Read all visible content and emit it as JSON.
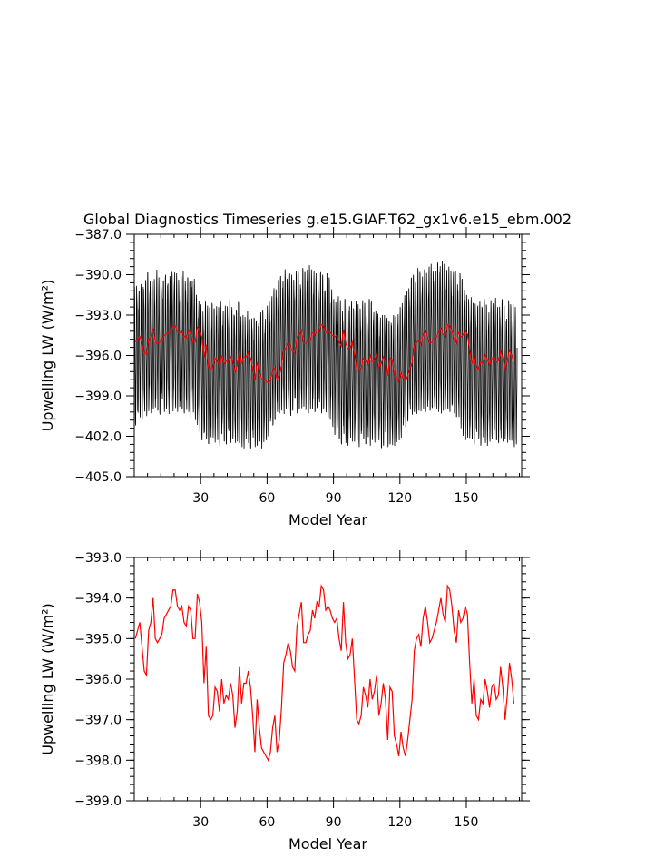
{
  "title": "Global Diagnostics Timeseries g.e15.GIAF.T62_gx1v6.e15_ebm.002",
  "chart_data": [
    {
      "type": "line",
      "xlabel": "Model Year",
      "ylabel": "Upwelling LW (W/m²)",
      "xlim": [
        0,
        175
      ],
      "ylim": [
        -405.0,
        -387.0
      ],
      "xticks": [
        30,
        60,
        90,
        120,
        150
      ],
      "yticks": [
        -405.0,
        -402.0,
        -399.0,
        -396.0,
        -393.0,
        -390.0,
        -387.0
      ],
      "grid": false,
      "series": [
        {
          "kind": "monthly",
          "color": "#000000",
          "annual_max": [
            -390.9,
            -390.6,
            -391.2,
            -390.7,
            -390.2,
            -390.4,
            -389.8,
            -390.1,
            -390.5,
            -390.3,
            -389.6,
            -390.2,
            -389.8,
            -390.4,
            -390.0,
            -389.9,
            -390.1,
            -389.8,
            -389.6,
            -389.9,
            -390.3,
            -390.1,
            -389.7,
            -390.0,
            -390.2,
            -390.5,
            -389.9,
            -390.3,
            -391.5,
            -391.8,
            -392.2,
            -392.6,
            -392.0,
            -392.3,
            -391.8,
            -392.1,
            -392.5,
            -391.9,
            -392.4,
            -392.0,
            -392.6,
            -392.3,
            -392.1,
            -391.7,
            -392.4,
            -392.2,
            -392.6,
            -392.0,
            -392.8,
            -393.0,
            -393.1,
            -392.7,
            -393.3,
            -392.9,
            -393.2,
            -393.4,
            -393.0,
            -392.8,
            -392.6,
            -393.1,
            -392.3,
            -391.9,
            -391.6,
            -391.0,
            -390.6,
            -390.4,
            -390.1,
            -389.9,
            -389.6,
            -390.3,
            -389.8,
            -390.0,
            -390.2,
            -389.7,
            -389.8,
            -390.1,
            -389.5,
            -389.8,
            -389.2,
            -389.3,
            -389.6,
            -389.7,
            -389.9,
            -390.1,
            -389.8,
            -390.0,
            -390.4,
            -389.9,
            -390.2,
            -390.8,
            -391.8,
            -392.0,
            -391.6,
            -391.9,
            -392.3,
            -391.8,
            -392.2,
            -391.7,
            -392.0,
            -392.5,
            -391.8,
            -392.2,
            -392.4,
            -391.9,
            -392.1,
            -392.6,
            -391.8,
            -392.0,
            -392.3,
            -392.7,
            -392.9,
            -393.1,
            -393.0,
            -392.8,
            -393.2,
            -393.4,
            -392.9,
            -393.0,
            -393.1,
            -392.6,
            -392.4,
            -392.1,
            -391.5,
            -391.2,
            -390.7,
            -390.2,
            -390.0,
            -389.7,
            -389.5,
            -389.8,
            -389.9,
            -389.6,
            -389.8,
            -389.4,
            -389.2,
            -389.3,
            -389.7,
            -389.1,
            -388.7,
            -389.0,
            -389.2,
            -389.5,
            -389.4,
            -389.6,
            -389.8,
            -389.7,
            -390.1,
            -389.9,
            -390.3,
            -390.6,
            -391.5,
            -391.8,
            -391.6,
            -392.1,
            -391.9,
            -392.3,
            -392.0,
            -391.6,
            -391.8,
            -392.2,
            -392.5,
            -391.9,
            -392.1,
            -391.7,
            -392.4,
            -392.0,
            -391.8,
            -392.3,
            -392.6,
            -391.9,
            -392.2,
            -392.0,
            -392.4,
            -392.1,
            -391.8
          ],
          "annual_min": [
            -401.2,
            -401.0,
            -400.6,
            -400.8,
            -400.4,
            -400.5,
            -400.2,
            -400.3,
            -400.0,
            -400.3,
            -400.1,
            -400.4,
            -399.8,
            -400.2,
            -400.0,
            -400.5,
            -400.1,
            -400.3,
            -399.9,
            -400.2,
            -400.4,
            -400.0,
            -400.3,
            -400.5,
            -400.2,
            -400.6,
            -400.3,
            -400.8,
            -401.4,
            -401.8,
            -402.3,
            -402.5,
            -402.2,
            -402.6,
            -402.4,
            -402.1,
            -402.5,
            -402.3,
            -402.7,
            -402.2,
            -402.4,
            -402.6,
            -402.3,
            -402.5,
            -402.2,
            -402.7,
            -402.4,
            -402.6,
            -402.8,
            -402.9,
            -402.7,
            -402.5,
            -402.9,
            -402.6,
            -402.8,
            -402.7,
            -402.5,
            -402.9,
            -402.6,
            -402.3,
            -402.0,
            -401.5,
            -401.2,
            -400.8,
            -400.6,
            -400.3,
            -400.1,
            -400.4,
            -400.0,
            -400.2,
            -400.5,
            -400.1,
            -399.9,
            -400.3,
            -400.0,
            -400.2,
            -399.8,
            -400.1,
            -400.3,
            -400.0,
            -400.4,
            -400.2,
            -399.9,
            -400.1,
            -400.3,
            -400.0,
            -400.4,
            -400.6,
            -400.9,
            -401.3,
            -401.9,
            -402.4,
            -402.2,
            -402.6,
            -402.3,
            -402.5,
            -402.7,
            -402.2,
            -402.4,
            -402.6,
            -402.3,
            -402.8,
            -402.5,
            -402.2,
            -402.6,
            -402.4,
            -402.7,
            -402.3,
            -402.5,
            -402.8,
            -402.6,
            -402.9,
            -402.7,
            -402.5,
            -402.8,
            -402.6,
            -402.9,
            -402.7,
            -402.5,
            -402.3,
            -402.1,
            -401.6,
            -401.3,
            -400.9,
            -400.6,
            -400.4,
            -400.2,
            -400.5,
            -400.1,
            -400.3,
            -400.0,
            -400.2,
            -400.4,
            -400.1,
            -399.9,
            -400.3,
            -400.0,
            -400.2,
            -400.4,
            -400.1,
            -400.3,
            -400.0,
            -400.2,
            -400.5,
            -400.3,
            -400.6,
            -400.9,
            -401.4,
            -402.0,
            -402.3,
            -402.1,
            -402.5,
            -402.2,
            -402.6,
            -402.4,
            -402.2,
            -402.7,
            -402.3,
            -402.5,
            -402.8,
            -402.4,
            -402.2,
            -402.6,
            -402.3,
            -402.5,
            -402.7,
            -402.4,
            -402.2,
            -402.6,
            -402.3,
            -402.5,
            -402.8,
            -402.6
          ]
        },
        {
          "kind": "annual",
          "color": "#ff0000",
          "values": [
            -395.0,
            -394.8,
            -394.6,
            -395.2,
            -395.8,
            -395.9,
            -394.8,
            -394.6,
            -394.0,
            -395.0,
            -395.1,
            -395.0,
            -394.9,
            -394.5,
            -394.4,
            -394.3,
            -394.2,
            -393.8,
            -393.8,
            -394.2,
            -394.3,
            -394.2,
            -394.6,
            -394.7,
            -394.2,
            -394.3,
            -395.0,
            -395.0,
            -393.9,
            -394.1,
            -394.6,
            -396.1,
            -395.2,
            -396.9,
            -397.0,
            -396.9,
            -396.2,
            -396.3,
            -396.8,
            -396.0,
            -396.6,
            -396.4,
            -396.5,
            -396.1,
            -396.4,
            -397.2,
            -396.8,
            -395.7,
            -396.6,
            -396.1,
            -396.1,
            -395.8,
            -396.2,
            -396.9,
            -397.8,
            -396.5,
            -397.2,
            -397.7,
            -397.8,
            -397.9,
            -398.0,
            -397.8,
            -397.2,
            -396.9,
            -397.8,
            -397.5,
            -396.7,
            -395.6,
            -395.4,
            -395.1,
            -395.3,
            -395.7,
            -395.8,
            -394.7,
            -394.4,
            -394.1,
            -395.1,
            -395.1,
            -394.9,
            -394.8,
            -394.3,
            -394.5,
            -394.1,
            -394.2,
            -393.7,
            -393.8,
            -394.3,
            -394.2,
            -394.3,
            -394.5,
            -394.6,
            -394.5,
            -395.0,
            -395.3,
            -394.1,
            -395.1,
            -395.5,
            -395.4,
            -395.0,
            -396.0,
            -397.0,
            -397.1,
            -396.9,
            -396.2,
            -396.4,
            -396.7,
            -396.0,
            -396.5,
            -396.3,
            -395.9,
            -396.9,
            -396.6,
            -396.1,
            -396.5,
            -397.5,
            -396.2,
            -396.3,
            -397.4,
            -397.6,
            -397.9,
            -397.3,
            -397.7,
            -397.9,
            -397.5,
            -397.0,
            -396.5,
            -395.3,
            -395.0,
            -394.9,
            -395.2,
            -394.5,
            -394.2,
            -394.6,
            -395.1,
            -395.0,
            -394.8,
            -394.6,
            -394.3,
            -394.0,
            -394.4,
            -394.6,
            -393.7,
            -393.8,
            -394.2,
            -394.8,
            -395.1,
            -394.3,
            -394.6,
            -394.5,
            -394.2,
            -394.4,
            -395.6,
            -396.6,
            -396.0,
            -396.9,
            -397.0,
            -396.5,
            -396.6,
            -396.0,
            -396.3,
            -396.7,
            -396.2,
            -396.1,
            -396.5,
            -396.4,
            -395.7,
            -396.2,
            -397.0,
            -396.4,
            -395.6,
            -396.0,
            -396.6
          ]
        }
      ]
    },
    {
      "type": "line",
      "xlabel": "Model Year",
      "ylabel": "Upwelling LW (W/m²)",
      "xlim": [
        0,
        175
      ],
      "ylim": [
        -399.0,
        -393.0
      ],
      "xticks": [
        30,
        60,
        90,
        120,
        150
      ],
      "yticks": [
        -399.0,
        -398.0,
        -397.0,
        -396.0,
        -395.0,
        -394.0,
        -393.0
      ],
      "grid": false,
      "series": [
        {
          "kind": "annual",
          "color": "#ff0000",
          "values": [
            -395.0,
            -394.8,
            -394.6,
            -395.2,
            -395.8,
            -395.9,
            -394.8,
            -394.6,
            -394.0,
            -395.0,
            -395.1,
            -395.0,
            -394.9,
            -394.5,
            -394.4,
            -394.3,
            -394.2,
            -393.8,
            -393.8,
            -394.2,
            -394.3,
            -394.2,
            -394.6,
            -394.7,
            -394.2,
            -394.3,
            -395.0,
            -395.0,
            -393.9,
            -394.1,
            -394.6,
            -396.1,
            -395.2,
            -396.9,
            -397.0,
            -396.9,
            -396.2,
            -396.3,
            -396.8,
            -396.0,
            -396.6,
            -396.4,
            -396.5,
            -396.1,
            -396.4,
            -397.2,
            -396.8,
            -395.7,
            -396.6,
            -396.1,
            -396.1,
            -395.8,
            -396.2,
            -396.9,
            -397.8,
            -396.5,
            -397.2,
            -397.7,
            -397.8,
            -397.9,
            -398.0,
            -397.8,
            -397.2,
            -396.9,
            -397.8,
            -397.5,
            -396.7,
            -395.6,
            -395.4,
            -395.1,
            -395.3,
            -395.7,
            -395.8,
            -394.7,
            -394.4,
            -394.1,
            -395.1,
            -395.1,
            -394.9,
            -394.8,
            -394.3,
            -394.5,
            -394.1,
            -394.2,
            -393.7,
            -393.8,
            -394.3,
            -394.2,
            -394.3,
            -394.5,
            -394.6,
            -394.5,
            -395.0,
            -395.3,
            -394.1,
            -395.1,
            -395.5,
            -395.4,
            -395.0,
            -396.0,
            -397.0,
            -397.1,
            -396.9,
            -396.2,
            -396.4,
            -396.7,
            -396.0,
            -396.5,
            -396.3,
            -395.9,
            -396.9,
            -396.6,
            -396.1,
            -396.5,
            -397.5,
            -396.2,
            -396.3,
            -397.4,
            -397.6,
            -397.9,
            -397.3,
            -397.7,
            -397.9,
            -397.5,
            -397.0,
            -396.5,
            -395.3,
            -395.0,
            -394.9,
            -395.2,
            -394.5,
            -394.2,
            -394.6,
            -395.1,
            -395.0,
            -394.8,
            -394.6,
            -394.3,
            -394.0,
            -394.4,
            -394.6,
            -393.7,
            -393.8,
            -394.2,
            -394.8,
            -395.1,
            -394.3,
            -394.6,
            -394.5,
            -394.2,
            -394.4,
            -395.6,
            -396.6,
            -396.0,
            -396.9,
            -397.0,
            -396.5,
            -396.6,
            -396.0,
            -396.3,
            -396.7,
            -396.2,
            -396.1,
            -396.5,
            -396.4,
            -395.7,
            -396.2,
            -397.0,
            -396.4,
            -395.6,
            -396.0,
            -396.6
          ]
        }
      ]
    }
  ]
}
